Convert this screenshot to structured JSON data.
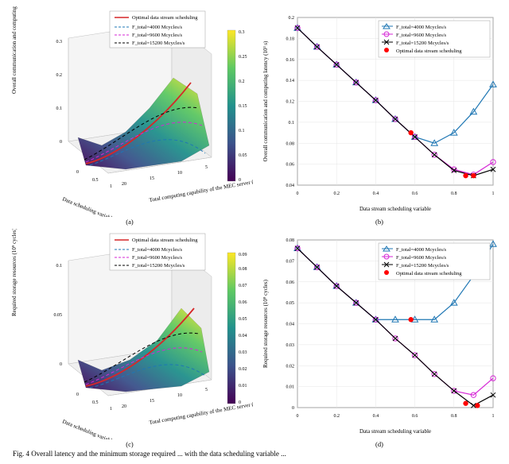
{
  "caption": "Fig. 4   Overall latency and the minimum storage required ... with the data scheduling variable ...",
  "subcaps": {
    "a": "(a)",
    "b": "(b)",
    "c": "(c)",
    "d": "(d)"
  },
  "surface_colormap": {
    "low": "#440154",
    "c2": "#3b528b",
    "c3": "#21918c",
    "c4": "#5ec962",
    "high": "#fde725"
  },
  "panel_a": {
    "type": "surface3d",
    "zlabel": "Overall communication and\ncomputing latency (10³ s)",
    "xlabel": "Data scheduling\nvariable",
    "ylabel": "Total computing capability of the\nMEC server (10⁹ cycles/s)",
    "zticks": [
      0,
      0.1,
      0.2,
      0.3
    ],
    "xticks": [
      0,
      0.5,
      1
    ],
    "yticks": [
      20,
      15,
      10,
      5
    ],
    "cbar_ticks": [
      0,
      0.05,
      0.1,
      0.15,
      0.2,
      0.25,
      0.3
    ],
    "cbar_range": [
      0,
      0.3
    ],
    "legend": {
      "title": "",
      "items": [
        {
          "label": "Optimal data\nstream scheduling",
          "style": "solid",
          "color": "#d62728"
        },
        {
          "label": "F_total=4000 Mcycles/s",
          "style": "dash",
          "color": "#1f77b4"
        },
        {
          "label": "F_total=9600 Mcycles/s",
          "style": "dash",
          "color": "#d627d6"
        },
        {
          "label": "F_total=15200 Mcycles/s",
          "style": "dash",
          "color": "#000000"
        }
      ]
    },
    "bg": "#ffffff",
    "grid_color": "#bfbfbf"
  },
  "panel_b": {
    "type": "line",
    "xlabel": "Data stream scheduling variable",
    "ylabel": "Overall communication and\ncomputing latency (10³ s)",
    "xlim": [
      0,
      1
    ],
    "xtick_step": 0.2,
    "ylim": [
      0.04,
      0.2
    ],
    "ytick_step": 0.02,
    "grid_color": "#e5e5e5",
    "bg": "#ffffff",
    "series": [
      {
        "label": "F_total=4000 Mcycles/s",
        "color": "#1f77b4",
        "marker": "triangle",
        "linewidth": 1.2,
        "x": [
          0,
          0.1,
          0.2,
          0.3,
          0.4,
          0.5,
          0.6,
          0.7,
          0.8,
          0.9,
          1
        ],
        "y": [
          0.19,
          0.172,
          0.155,
          0.138,
          0.121,
          0.103,
          0.086,
          0.08,
          0.09,
          0.11,
          0.136
        ]
      },
      {
        "label": "F_total=9600 Mcycles/s",
        "color": "#d627d6",
        "marker": "circle",
        "linewidth": 1.2,
        "x": [
          0,
          0.1,
          0.2,
          0.3,
          0.4,
          0.5,
          0.6,
          0.7,
          0.8,
          0.9,
          1
        ],
        "y": [
          0.19,
          0.172,
          0.155,
          0.138,
          0.121,
          0.103,
          0.086,
          0.069,
          0.055,
          0.05,
          0.062
        ]
      },
      {
        "label": "F_total=15200 Mcycles/s",
        "color": "#000000",
        "marker": "x",
        "linewidth": 1.2,
        "x": [
          0,
          0.1,
          0.2,
          0.3,
          0.4,
          0.5,
          0.6,
          0.7,
          0.8,
          0.9,
          1
        ],
        "y": [
          0.19,
          0.172,
          0.155,
          0.138,
          0.121,
          0.103,
          0.086,
          0.069,
          0.054,
          0.049,
          0.055
        ]
      },
      {
        "label": "Optimal data stream scheduling",
        "color": "#ff0000",
        "marker": "dot",
        "linewidth": 0,
        "x": [
          0.58,
          0.86,
          0.9
        ],
        "y": [
          0.09,
          0.049,
          0.049
        ]
      }
    ],
    "legend_pos": "top-right"
  },
  "panel_c": {
    "type": "surface3d",
    "zlabel": "Required storage resources\n(10⁹ cycles)",
    "xlabel": "Data scheduling\nvariable",
    "ylabel": "Total computing capability of the\nMEC server (10⁹ cycles/s)",
    "zticks": [
      0,
      0.05,
      0.1
    ],
    "xticks": [
      0,
      0.5,
      1
    ],
    "yticks": [
      20,
      15,
      10,
      5
    ],
    "cbar_ticks": [
      0,
      0.01,
      0.02,
      0.03,
      0.04,
      0.05,
      0.06,
      0.07,
      0.08,
      0.09
    ],
    "cbar_range": [
      0,
      0.095
    ],
    "legend": {
      "items": [
        {
          "label": "Optimal data\nstream scheduling",
          "style": "solid",
          "color": "#d62728"
        },
        {
          "label": "F_total=4000 Mcycles/s",
          "style": "dash",
          "color": "#1f77b4"
        },
        {
          "label": "F_total=9600 Mcycles/s",
          "style": "dash",
          "color": "#d627d6"
        },
        {
          "label": "F_total=15200 Mcycles/s",
          "style": "dash",
          "color": "#000000"
        }
      ]
    },
    "bg": "#ffffff",
    "grid_color": "#bfbfbf"
  },
  "panel_d": {
    "type": "line",
    "xlabel": "Data stream scheduling variable",
    "ylabel": "Required storage resources (10⁹ cycles)",
    "xlim": [
      0,
      1
    ],
    "xtick_step": 0.2,
    "ylim": [
      0,
      0.08
    ],
    "ytick_step": 0.01,
    "grid_color": "#e5e5e5",
    "bg": "#ffffff",
    "series": [
      {
        "label": "F_total=4000 Mcycles/s",
        "color": "#1f77b4",
        "marker": "triangle",
        "linewidth": 1.2,
        "x": [
          0,
          0.1,
          0.2,
          0.3,
          0.4,
          0.5,
          0.6,
          0.7,
          0.8,
          0.9,
          1
        ],
        "y": [
          0.076,
          0.067,
          0.058,
          0.05,
          0.042,
          0.042,
          0.042,
          0.042,
          0.05,
          0.063,
          0.078
        ]
      },
      {
        "label": "F_total=9600 Mcycles/s",
        "color": "#d627d6",
        "marker": "circle",
        "linewidth": 1.2,
        "x": [
          0,
          0.1,
          0.2,
          0.3,
          0.4,
          0.5,
          0.6,
          0.7,
          0.8,
          0.9,
          1
        ],
        "y": [
          0.076,
          0.067,
          0.058,
          0.05,
          0.042,
          0.033,
          0.025,
          0.016,
          0.008,
          0.006,
          0.014
        ]
      },
      {
        "label": "F_total=15200 Mcycles/s",
        "color": "#000000",
        "marker": "x",
        "linewidth": 1.2,
        "x": [
          0,
          0.1,
          0.2,
          0.3,
          0.4,
          0.5,
          0.6,
          0.7,
          0.8,
          0.9,
          1
        ],
        "y": [
          0.076,
          0.067,
          0.058,
          0.05,
          0.042,
          0.033,
          0.025,
          0.016,
          0.008,
          0.001,
          0.006
        ]
      },
      {
        "label": "Optimal data stream scheduling",
        "color": "#ff0000",
        "marker": "dot",
        "linewidth": 0,
        "x": [
          0.58,
          0.86,
          0.92
        ],
        "y": [
          0.042,
          0.002,
          0.001
        ]
      }
    ],
    "legend_pos": "top-right"
  }
}
